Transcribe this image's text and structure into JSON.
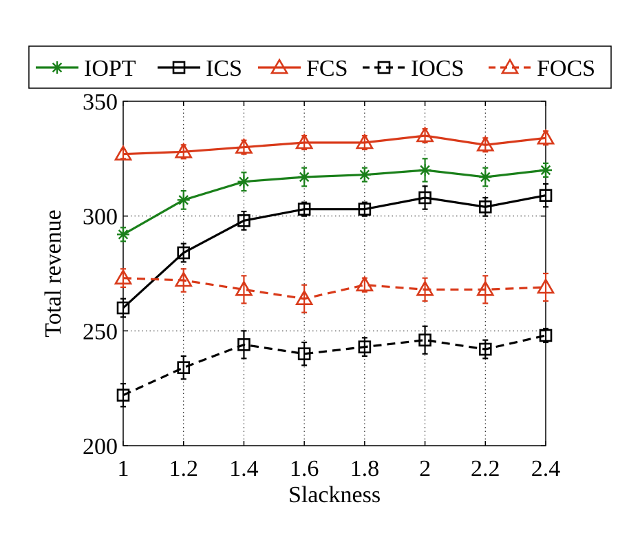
{
  "chart_data": {
    "type": "line",
    "title": "",
    "xlabel": "Slackness",
    "ylabel": "Total revenue",
    "x": [
      1,
      1.2,
      1.4,
      1.6,
      1.8,
      2,
      2.2,
      2.4
    ],
    "x_tick_labels": [
      "1",
      "1.2",
      "1.4",
      "1.6",
      "1.8",
      "2",
      "2.2",
      "2.4"
    ],
    "y_ticks": [
      200,
      250,
      300,
      350
    ],
    "y_tick_labels": [
      "200",
      "250",
      "300",
      "350"
    ],
    "xlim": [
      1,
      2.4
    ],
    "ylim": [
      200,
      350
    ],
    "grid": true,
    "legend_position": "top, above plot, single row",
    "series": [
      {
        "name": "IOPT",
        "color": "#1a801a",
        "line_style": "solid",
        "marker": "asterisk",
        "values": [
          292,
          307,
          315,
          317,
          318,
          320,
          317,
          320
        ],
        "error": [
          3,
          4,
          4,
          4,
          3,
          5,
          4,
          3
        ]
      },
      {
        "name": "ICS",
        "color": "#000000",
        "line_style": "solid",
        "marker": "square",
        "values": [
          260,
          284,
          298,
          303,
          303,
          308,
          304,
          309
        ],
        "error": [
          4,
          4,
          4,
          3,
          3,
          5,
          4,
          5
        ]
      },
      {
        "name": "FCS",
        "color": "#d93a1a",
        "line_style": "solid",
        "marker": "triangle",
        "values": [
          327,
          328,
          330,
          332,
          332,
          335,
          331,
          334
        ],
        "error": [
          2,
          3,
          3,
          3,
          3,
          3,
          3,
          3
        ]
      },
      {
        "name": "IOCS",
        "color": "#000000",
        "line_style": "dashed",
        "marker": "square",
        "values": [
          222,
          234,
          244,
          240,
          243,
          246,
          242,
          248
        ],
        "error": [
          5,
          5,
          6,
          5,
          4,
          6,
          4,
          3
        ]
      },
      {
        "name": "FOCS",
        "color": "#d93a1a",
        "line_style": "dashed",
        "marker": "triangle",
        "values": [
          273,
          272,
          268,
          264,
          270,
          268,
          268,
          269
        ],
        "error": [
          4,
          5,
          6,
          6,
          3,
          5,
          6,
          6
        ]
      }
    ]
  }
}
